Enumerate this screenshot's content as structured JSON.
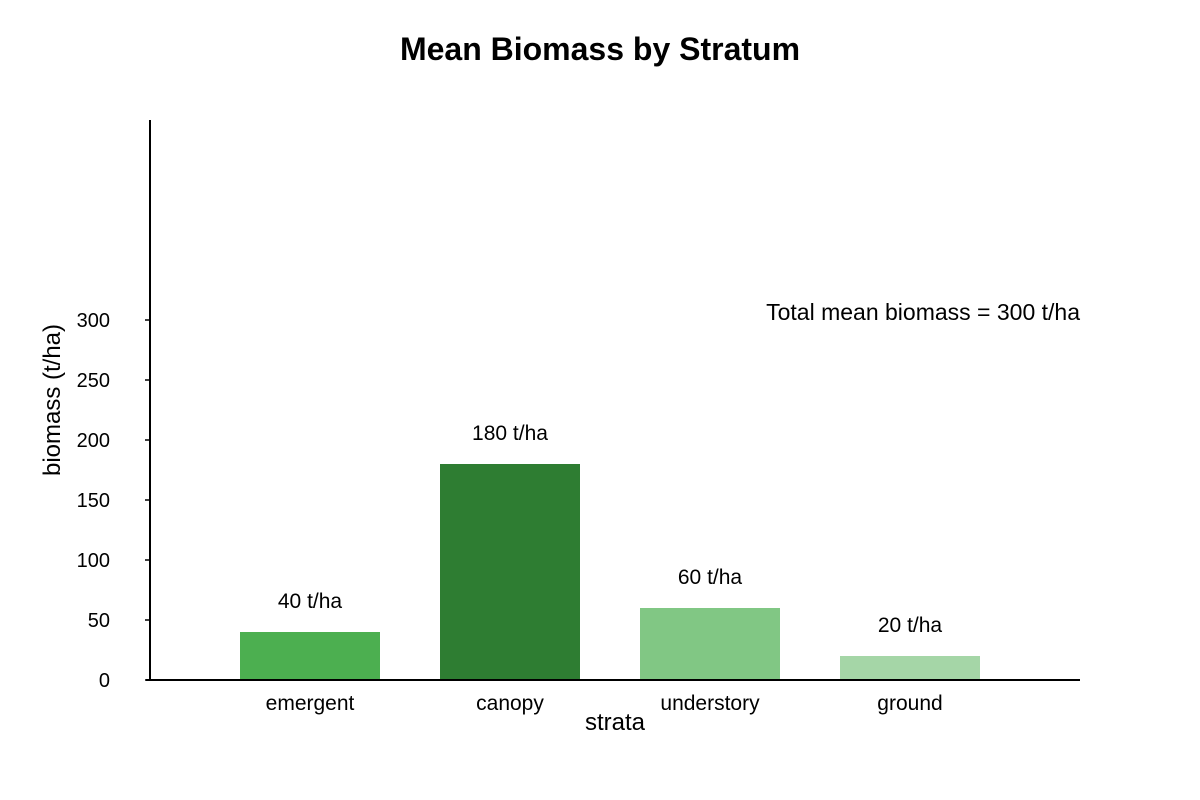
{
  "chart_data": {
    "type": "bar",
    "title": "Mean Biomass by Stratum",
    "xlabel": "strata",
    "ylabel": "biomass (t/ha)",
    "categories": [
      "emergent",
      "canopy",
      "understory",
      "ground"
    ],
    "values": [
      40,
      180,
      60,
      20
    ],
    "data_labels": [
      "40 t/ha",
      "180 t/ha",
      "60 t/ha",
      "20 t/ha"
    ],
    "colors": [
      "#4caf50",
      "#2e7d32",
      "#81c784",
      "#a5d6a7"
    ],
    "yticks": [
      0,
      50,
      100,
      150,
      200,
      250,
      300
    ],
    "ylim": [
      0,
      360
    ],
    "grid": false,
    "annotation": "Total mean biomass = 300 t/ha"
  }
}
